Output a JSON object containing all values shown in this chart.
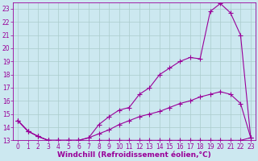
{
  "background_color": "#cce8f0",
  "grid_color": "#aacccc",
  "line_color": "#990099",
  "xlabel": "Windchill (Refroidissement éolien,°C)",
  "xlabel_fontsize": 6.5,
  "tick_fontsize": 5.5,
  "xlim": [
    -0.5,
    23.5
  ],
  "ylim": [
    13,
    23.5
  ],
  "yticks": [
    13,
    14,
    15,
    16,
    17,
    18,
    19,
    20,
    21,
    22,
    23
  ],
  "xticks": [
    0,
    1,
    2,
    3,
    4,
    5,
    6,
    7,
    8,
    9,
    10,
    11,
    12,
    13,
    14,
    15,
    16,
    17,
    18,
    19,
    20,
    21,
    22,
    23
  ],
  "series": [
    {
      "x": [
        0,
        1,
        2,
        3,
        4,
        5,
        6,
        7,
        8,
        9,
        10,
        11,
        12,
        13,
        14,
        15,
        16,
        17,
        18,
        19,
        20,
        21,
        22,
        23
      ],
      "y": [
        14.5,
        13.7,
        13.3,
        13.0,
        13.0,
        13.0,
        13.0,
        12.8,
        13.0,
        13.0,
        13.0,
        13.0,
        13.0,
        13.0,
        13.0,
        13.0,
        13.0,
        13.0,
        13.0,
        13.0,
        13.0,
        13.0,
        13.0,
        13.2
      ],
      "marker": "+",
      "markersize": 4,
      "linewidth": 0.8
    },
    {
      "x": [
        0,
        1,
        2,
        3,
        4,
        5,
        6,
        7,
        8,
        9,
        10,
        11,
        12,
        13,
        14,
        15,
        16,
        17,
        18,
        19,
        20,
        21,
        22,
        23
      ],
      "y": [
        14.5,
        13.7,
        13.3,
        13.0,
        13.0,
        13.0,
        13.0,
        13.2,
        13.5,
        13.8,
        14.2,
        14.5,
        14.8,
        15.0,
        15.2,
        15.5,
        15.8,
        16.0,
        16.3,
        16.5,
        16.7,
        16.5,
        15.8,
        13.2
      ],
      "marker": "+",
      "markersize": 4,
      "linewidth": 0.8
    },
    {
      "x": [
        0,
        1,
        2,
        3,
        4,
        5,
        6,
        7,
        8,
        9,
        10,
        11,
        12,
        13,
        14,
        15,
        16,
        17,
        18,
        19,
        20,
        21,
        22,
        23
      ],
      "y": [
        14.5,
        13.7,
        13.3,
        13.0,
        13.0,
        13.0,
        13.0,
        13.2,
        14.2,
        14.8,
        15.3,
        15.5,
        16.5,
        17.0,
        18.0,
        18.5,
        19.0,
        19.3,
        19.2,
        22.8,
        23.4,
        22.7,
        21.0,
        13.2
      ],
      "marker": "+",
      "markersize": 4,
      "linewidth": 0.8
    }
  ]
}
